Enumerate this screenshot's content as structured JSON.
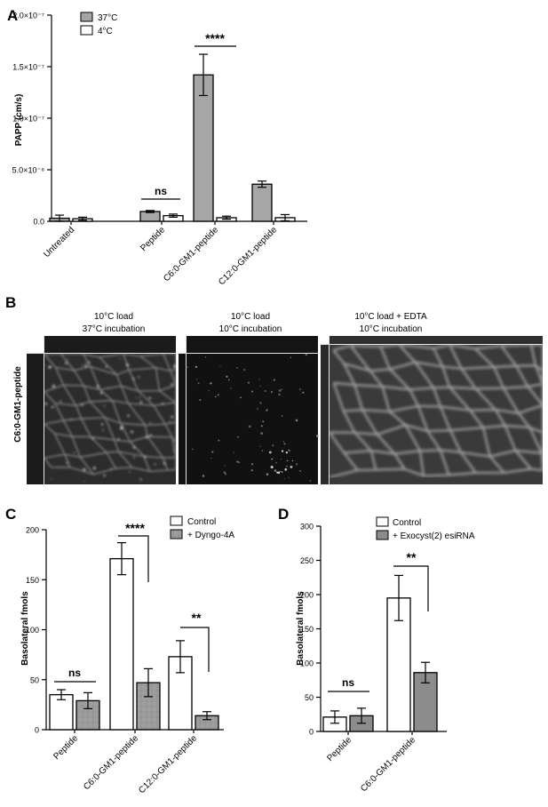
{
  "chart_data": [
    {
      "panel_label": "A",
      "type": "bar",
      "ylabel": "PAPP (cm/s)",
      "yticks": [
        "0.0",
        "5.0×10⁻⁸",
        "1.0×10⁻⁷",
        "1.5×10⁻⁷",
        "2.0×10⁻⁷"
      ],
      "ytick_values": [
        0,
        5e-08,
        1e-07,
        1.5e-07,
        2e-07
      ],
      "ylim": [
        0,
        2e-07
      ],
      "categories": [
        "Untreated",
        "Peptide",
        "C6:0-GM1-peptide",
        "C12:0-GM1-peptide"
      ],
      "series": [
        {
          "name": "37°C",
          "color": "#a6a6a6",
          "values": [
            3e-09,
            9.5e-09,
            1.42e-07,
            3.6e-08
          ],
          "errors": [
            3e-09,
            1e-09,
            2e-08,
            3e-09
          ]
        },
        {
          "name": "4°C",
          "color": "#ffffff",
          "values": [
            2.5e-09,
            5.5e-09,
            3.5e-09,
            3.5e-09
          ],
          "errors": [
            1.5e-09,
            1.5e-09,
            1.5e-09,
            3e-09
          ]
        }
      ],
      "legend_position": "top-left",
      "annotations": [
        {
          "text": "ns",
          "category": 1
        },
        {
          "text": "****",
          "category": 2
        }
      ]
    },
    {
      "panel_label": "C",
      "type": "bar",
      "ylabel": "Basolateral fmols",
      "yticks": [
        "0",
        "50",
        "100",
        "150",
        "200"
      ],
      "ytick_values": [
        0,
        50,
        100,
        150,
        200
      ],
      "ylim": [
        0,
        200
      ],
      "categories": [
        "Peptide",
        "C6:0-GM1-peptide",
        "C12:0-GM1-peptide"
      ],
      "series": [
        {
          "name": "Control",
          "color": "#ffffff",
          "values": [
            35,
            171,
            73
          ],
          "errors": [
            5,
            16,
            16
          ]
        },
        {
          "name": "+ Dyngo-4A",
          "color": "#9e9e9e",
          "values": [
            29,
            47,
            14
          ],
          "errors": [
            8,
            14,
            4
          ]
        }
      ],
      "legend_position": "top-right",
      "annotations": [
        {
          "text": "ns",
          "category": 0
        },
        {
          "text": "****",
          "category": 1
        },
        {
          "text": "**",
          "category": 2
        }
      ]
    },
    {
      "panel_label": "D",
      "type": "bar",
      "ylabel": "Basolateral fmols",
      "yticks": [
        "0",
        "50",
        "100",
        "150",
        "200",
        "250",
        "300"
      ],
      "ytick_values": [
        0,
        50,
        100,
        150,
        200,
        250,
        300
      ],
      "ylim": [
        0,
        300
      ],
      "categories": [
        "Peptide",
        "C6:0-GM1-peptide"
      ],
      "series": [
        {
          "name": "Control",
          "color": "#ffffff",
          "values": [
            21,
            195
          ],
          "errors": [
            9,
            33
          ]
        },
        {
          "name": "+ Exocyst(2) esiRNA",
          "color": "#8c8c8c",
          "values": [
            23,
            86
          ],
          "errors": [
            11,
            15
          ]
        }
      ],
      "legend_position": "top",
      "annotations": [
        {
          "text": "ns",
          "category": 0
        },
        {
          "text": "**",
          "category": 1
        }
      ]
    }
  ],
  "panel_b": {
    "label": "B",
    "row_label": "C6:0-GM1-peptide",
    "conditions": [
      {
        "line1": "10°C load",
        "line2": "37°C incubation"
      },
      {
        "line1": "10°C load",
        "line2": "10°C incubation"
      },
      {
        "line1": "10°C load + EDTA",
        "line2": "10°C incubation"
      }
    ]
  }
}
